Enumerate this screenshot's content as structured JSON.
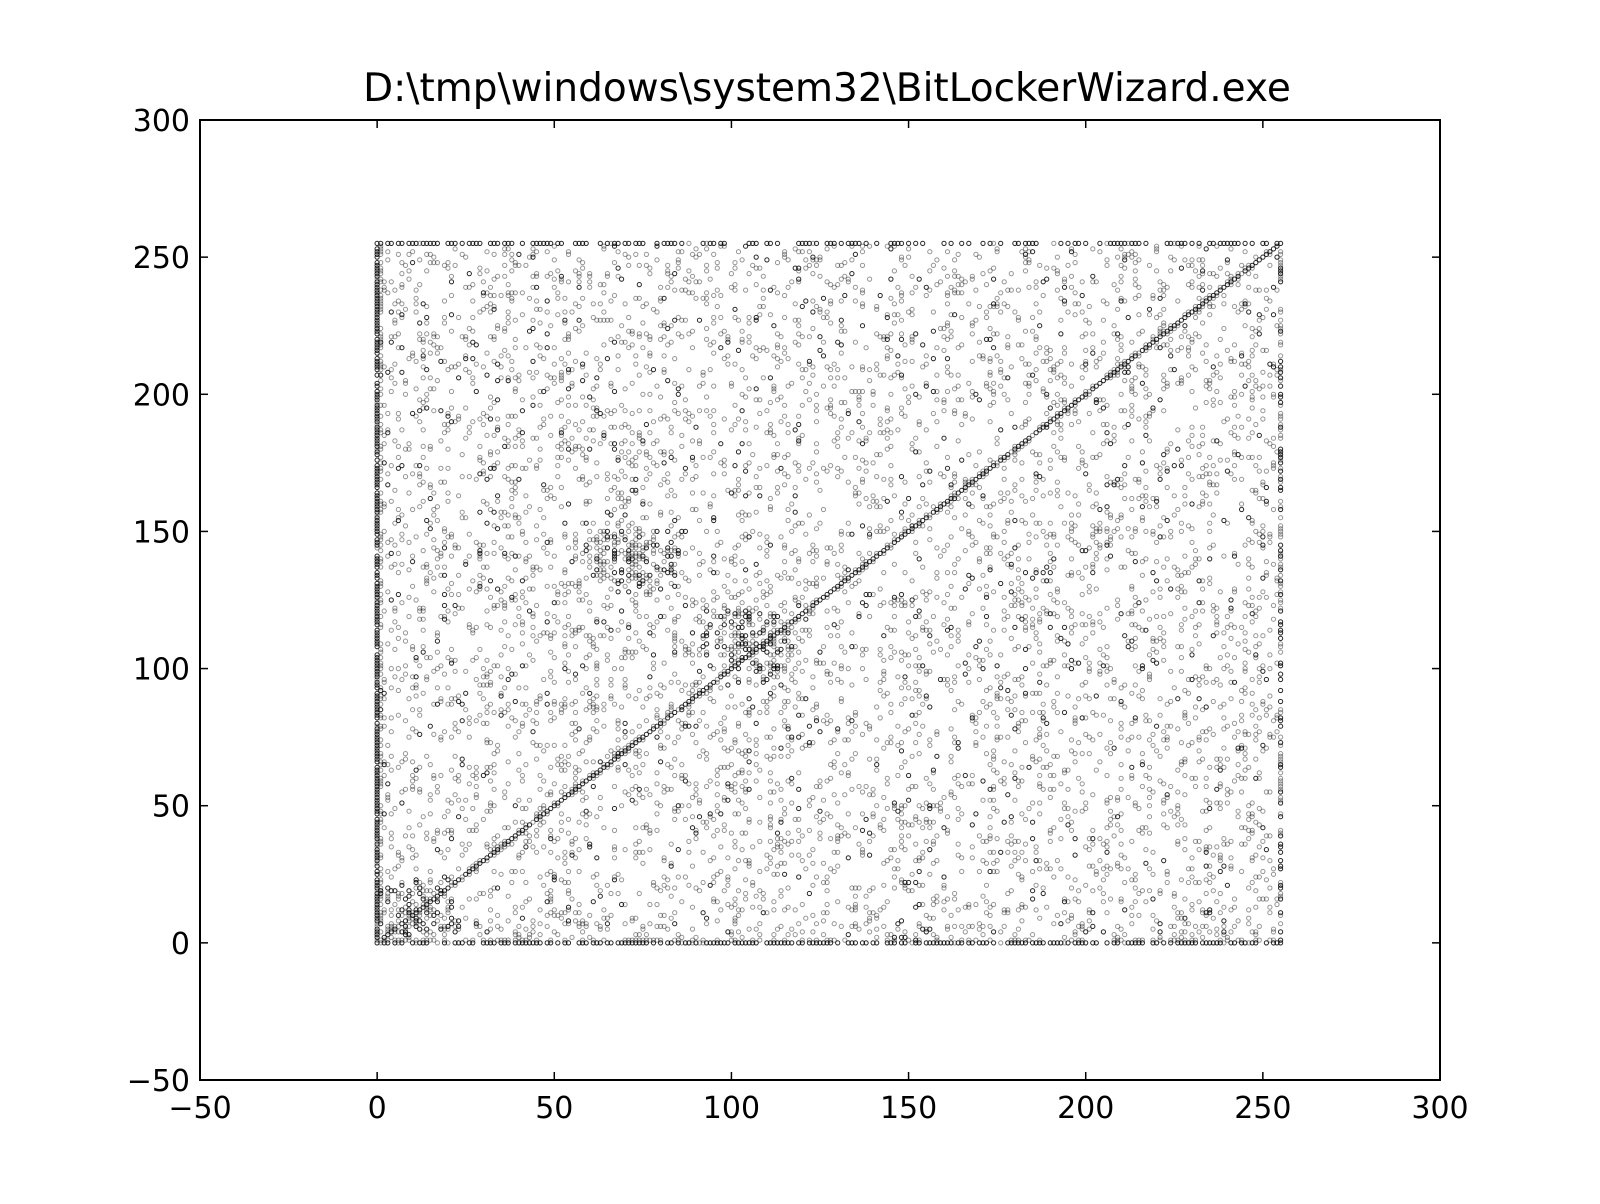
{
  "chart_data": {
    "type": "scatter",
    "title": "D:\\tmp\\windows\\system32\\BitLockerWizard.exe",
    "xlabel": "",
    "ylabel": "",
    "xlim": [
      -50,
      300
    ],
    "ylim": [
      -50,
      300
    ],
    "xticks": [
      -50,
      0,
      50,
      100,
      150,
      200,
      250,
      300
    ],
    "yticks": [
      -50,
      0,
      50,
      100,
      150,
      200,
      250,
      300
    ],
    "xtick_labels": [
      "−50",
      "0",
      "50",
      "100",
      "150",
      "200",
      "250",
      "300"
    ],
    "ytick_labels": [
      "−50",
      "0",
      "50",
      "100",
      "150",
      "200",
      "250",
      "300"
    ],
    "grid": false,
    "legend": "none",
    "marker_color": "#000000",
    "data_domain": {
      "x": [
        0,
        255
      ],
      "y": [
        0,
        255
      ]
    },
    "diagonal_line": {
      "from": [
        0,
        0
      ],
      "to": [
        255,
        255
      ]
    },
    "dense_edges": [
      "x=0",
      "y=0",
      "x=255",
      "y=255"
    ],
    "dense_clusters": [
      {
        "x": 105,
        "y": 108
      },
      {
        "x": 72,
        "y": 140
      },
      {
        "x": 10,
        "y": 10
      }
    ]
  }
}
